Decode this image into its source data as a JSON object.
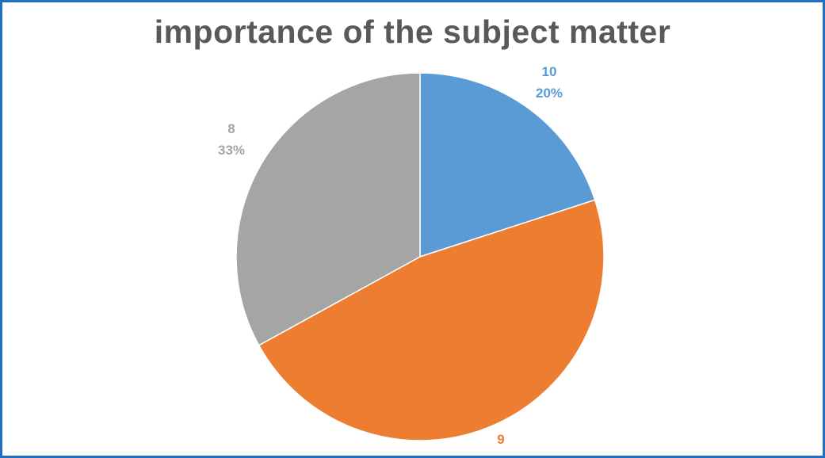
{
  "chart_data": {
    "type": "pie",
    "title": "importance of the subject matter",
    "categories": [
      "10",
      "9",
      "8"
    ],
    "values": [
      20,
      47,
      33
    ],
    "value_labels": [
      "20%",
      "",
      "33%"
    ],
    "colors": [
      "#5b9bd5",
      "#ed7d31",
      "#a5a5a5"
    ],
    "legend": "none"
  }
}
